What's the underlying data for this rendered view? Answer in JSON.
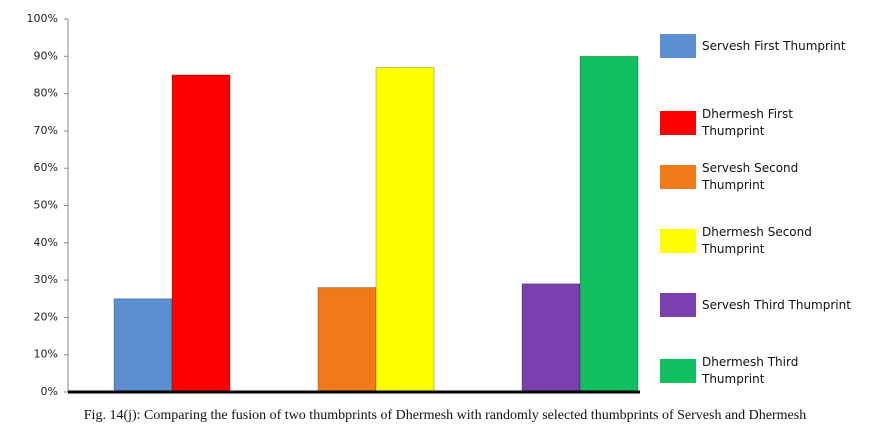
{
  "chart_data": {
    "type": "bar",
    "caption": "Fig. 14(j): Comparing the fusion of two thumbprints of Dhermesh with randomly selected thumbprints of Servesh and Dhermesh",
    "categories": [
      null,
      null,
      null
    ],
    "series": [
      {
        "name": "Servesh First Thumprint",
        "color": "#5b8fd0",
        "values": [
          25,
          null,
          null
        ]
      },
      {
        "name": "Dhermesh First Thumprint",
        "color": "#ff0000",
        "values": [
          85,
          null,
          null
        ]
      },
      {
        "name": "Servesh Second Thumprint",
        "color": "#f07a18",
        "values": [
          null,
          28,
          null
        ]
      },
      {
        "name": "Dhermesh Second Thumprint",
        "color": "#ffff00",
        "values": [
          null,
          87,
          null
        ]
      },
      {
        "name": "Servesh Third Thumprint",
        "color": "#7b3fb0",
        "values": [
          null,
          null,
          29
        ]
      },
      {
        "name": "Dhermesh Third Thumprint",
        "color": "#10c060",
        "values": [
          null,
          null,
          90
        ]
      }
    ],
    "ylim": [
      0,
      100
    ],
    "yticks": [
      {
        "value": 0,
        "label": "0%"
      },
      {
        "value": 10,
        "label": "10%"
      },
      {
        "value": 20,
        "label": "20%"
      },
      {
        "value": 30,
        "label": "30%"
      },
      {
        "value": 40,
        "label": "40%"
      },
      {
        "value": 50,
        "label": "50%"
      },
      {
        "value": 60,
        "label": "60%"
      },
      {
        "value": 70,
        "label": "70%"
      },
      {
        "value": 80,
        "label": "80%"
      },
      {
        "value": 90,
        "label": "90%"
      },
      {
        "value": 100,
        "label": "100%"
      }
    ],
    "grid": false
  }
}
